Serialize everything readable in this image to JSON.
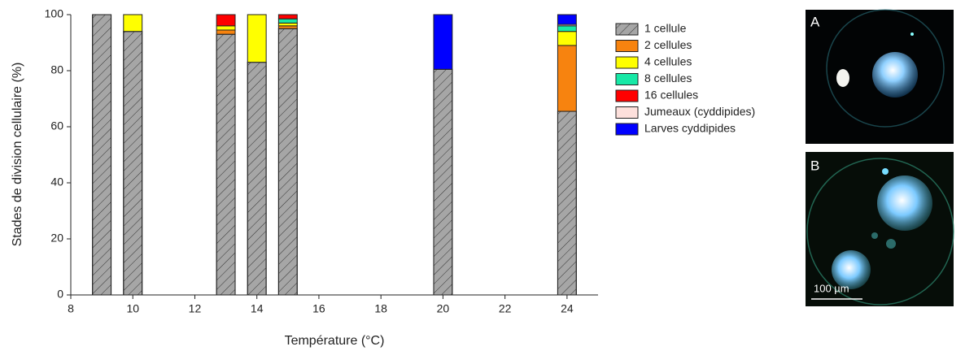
{
  "chart_data": {
    "type": "stacked-bar",
    "xlabel": "Température (°C)",
    "ylabel": "Stades de division cellulaire (%)",
    "x": [
      9,
      10,
      13,
      14,
      15,
      20,
      24
    ],
    "xlim": [
      8,
      25
    ],
    "xticks": [
      8,
      10,
      12,
      14,
      16,
      18,
      20,
      22,
      24
    ],
    "ylim": [
      0,
      100
    ],
    "yticks": [
      0,
      20,
      40,
      60,
      80,
      100
    ],
    "bar_width": 0.6,
    "grid": false,
    "legend": "right",
    "series": [
      {
        "name": "1 cellule",
        "color": "#a6a6a6",
        "hatch": true,
        "values": [
          100,
          94,
          93,
          83,
          95,
          80.5,
          65.5
        ]
      },
      {
        "name": "2 cellules",
        "color": "#f7830f",
        "values": [
          0,
          0,
          1.5,
          0,
          1,
          0,
          23.5
        ]
      },
      {
        "name": "4 cellules",
        "color": "#ffff00",
        "values": [
          0,
          6,
          1.5,
          17,
          1,
          0,
          5
        ]
      },
      {
        "name": "8 cellules",
        "color": "#17e8a6",
        "values": [
          0,
          0,
          0,
          0,
          1.5,
          0,
          2
        ]
      },
      {
        "name": "16 cellules",
        "color": "#ff0000",
        "values": [
          0,
          0,
          4,
          0,
          1.5,
          0,
          0
        ]
      },
      {
        "name": "Jumeaux (cyddipides)",
        "color": "#fde0dc",
        "values": [
          0,
          0,
          0,
          0,
          0,
          0,
          0.5
        ]
      },
      {
        "name": "Larves cyddipides",
        "color": "#0000ff",
        "values": [
          0,
          0,
          0,
          0,
          0,
          19.5,
          3.5
        ]
      }
    ]
  },
  "panels": [
    {
      "label": "A"
    },
    {
      "label": "B",
      "scale_bar": "100 µm"
    }
  ]
}
